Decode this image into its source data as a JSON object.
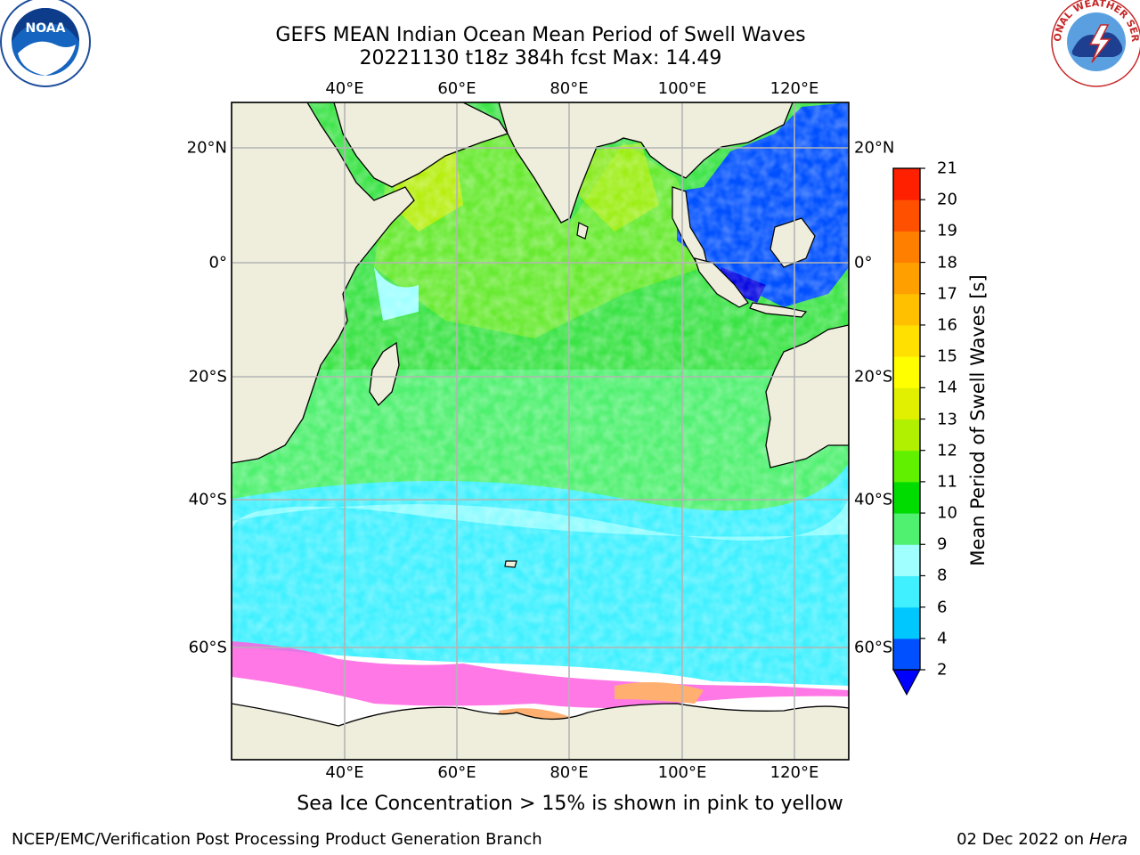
{
  "title_line1": "GEFS MEAN Indian Ocean Mean Period of Swell Waves",
  "title_line2": "20221130 t18z 384h fcst   Max: 14.49",
  "lon_labels": [
    "40°E",
    "60°E",
    "80°E",
    "100°E",
    "120°E"
  ],
  "lat_labels_left": [
    "20°N",
    "0°",
    "20°S",
    "40°S",
    "60°S"
  ],
  "lat_labels_right": [
    "20°N",
    "0°",
    "20°S",
    "40°S",
    "60°S"
  ],
  "colorbar": {
    "label": "Mean Period of Swell Waves [s]",
    "ticks": [
      "2",
      "4",
      "6",
      "8",
      "9",
      "10",
      "11",
      "12",
      "13",
      "14",
      "15",
      "16",
      "17",
      "18",
      "19",
      "20",
      "21"
    ],
    "colors": [
      "#0050ff",
      "#00c8ff",
      "#40f0ff",
      "#a0ffff",
      "#50f070",
      "#00dc00",
      "#60f000",
      "#b0f000",
      "#e0f000",
      "#ffff00",
      "#ffe000",
      "#ffc000",
      "#ffa000",
      "#ff8000",
      "#ff5000",
      "#ff2000"
    ],
    "extend_color": "#0000ff"
  },
  "footer_note": "Sea Ice Concentration > 15% is shown in pink to yellow",
  "credit_left": "NCEP/EMC/Verification Post Processing Product Generation Branch",
  "credit_date": "02 Dec 2022 on",
  "credit_host": "Hera",
  "logos": {
    "left": "NOAA",
    "right": "NATIONAL WEATHER SERVICE"
  }
}
